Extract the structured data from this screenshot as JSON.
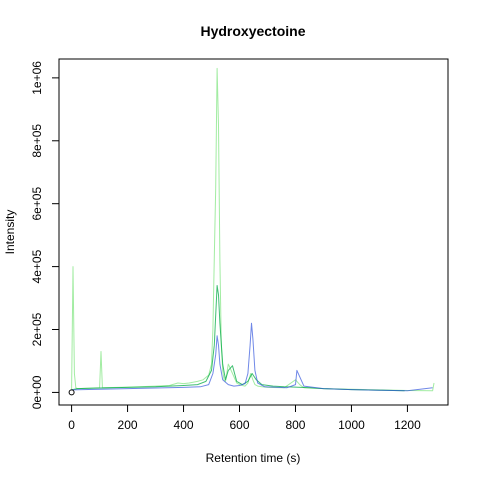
{
  "chart_data": {
    "type": "line",
    "title": "Hydroxyectoine",
    "xlabel": "Retention time (s)",
    "ylabel": "Intensity",
    "xlim": [
      -45,
      1345
    ],
    "ylim": [
      -40000,
      1060000
    ],
    "x_ticks": [
      0,
      200,
      400,
      600,
      800,
      1000,
      1200
    ],
    "x_tick_labels": [
      "0",
      "200",
      "400",
      "600",
      "800",
      "1000",
      "1200"
    ],
    "y_ticks": [
      0,
      200000,
      400000,
      600000,
      800000,
      1000000
    ],
    "y_tick_labels": [
      "0e+00",
      "2e+05",
      "4e+05",
      "6e+05",
      "8e+05",
      "1e+06"
    ],
    "grid": false,
    "legend": "none",
    "marker_point": {
      "x": 0,
      "y": 0
    },
    "series": [
      {
        "color": "#55DD55",
        "opacity": 0.55,
        "x": [
          0,
          5,
          10,
          15,
          20,
          100,
          105,
          110,
          240,
          300,
          350,
          360,
          380,
          400,
          420,
          450,
          470,
          490,
          500,
          505,
          510,
          515,
          520,
          525,
          530,
          535,
          540,
          545,
          550,
          560,
          575,
          590,
          600,
          610,
          620,
          630,
          640,
          648,
          655,
          665,
          680,
          700,
          760,
          800,
          815,
          830,
          900,
          1000,
          1100,
          1200,
          1290,
          1295
        ],
        "y": [
          10000,
          400000,
          60000,
          15000,
          12000,
          15000,
          130000,
          15000,
          18000,
          20000,
          22000,
          25000,
          30000,
          28000,
          30000,
          35000,
          40000,
          55000,
          90000,
          200000,
          430000,
          650000,
          1030000,
          850000,
          420000,
          150000,
          70000,
          40000,
          35000,
          90000,
          60000,
          30000,
          25000,
          22000,
          20000,
          30000,
          60000,
          40000,
          25000,
          20000,
          18000,
          16000,
          15000,
          40000,
          25000,
          15000,
          12000,
          10000,
          8000,
          6000,
          5000,
          30000
        ]
      },
      {
        "color": "#00AA44",
        "opacity": 0.75,
        "x": [
          0,
          20,
          100,
          200,
          300,
          350,
          400,
          450,
          480,
          500,
          510,
          520,
          525,
          530,
          540,
          550,
          560,
          575,
          590,
          610,
          630,
          645,
          660,
          680,
          720,
          760,
          800,
          850,
          900,
          1000,
          1100,
          1190
        ],
        "y": [
          8000,
          12000,
          14000,
          16000,
          18000,
          20000,
          22000,
          25000,
          35000,
          70000,
          150000,
          340000,
          310000,
          220000,
          90000,
          40000,
          70000,
          85000,
          35000,
          25000,
          35000,
          60000,
          40000,
          25000,
          20000,
          18000,
          17000,
          15000,
          12000,
          9000,
          7000,
          5000
        ]
      },
      {
        "color": "#3355DD",
        "opacity": 0.7,
        "x": [
          0,
          100,
          200,
          300,
          400,
          460,
          490,
          505,
          515,
          520,
          525,
          530,
          540,
          560,
          580,
          600,
          620,
          630,
          638,
          643,
          648,
          655,
          665,
          690,
          770,
          800,
          805,
          830,
          900,
          1000,
          1100,
          1200,
          1290
        ],
        "y": [
          8000,
          10000,
          12000,
          14000,
          16000,
          18000,
          25000,
          60000,
          120000,
          180000,
          150000,
          90000,
          40000,
          25000,
          20000,
          22000,
          28000,
          60000,
          150000,
          220000,
          170000,
          70000,
          30000,
          18000,
          15000,
          25000,
          70000,
          20000,
          12000,
          9000,
          7000,
          5000,
          15000
        ]
      }
    ]
  }
}
